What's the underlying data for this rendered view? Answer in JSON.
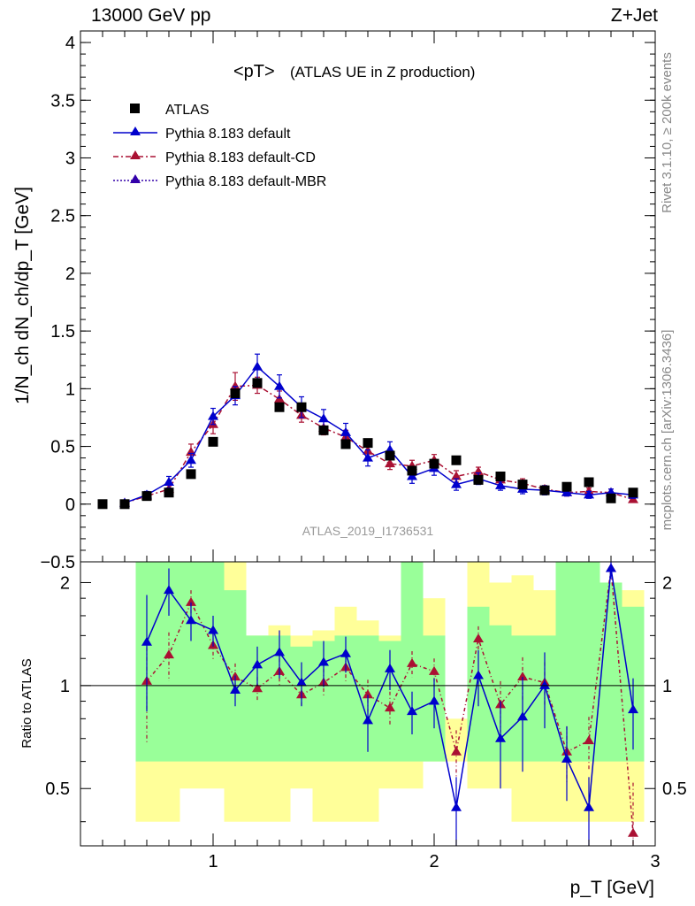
{
  "header": {
    "left": "13000 GeV pp",
    "right": "Z+Jet"
  },
  "side_labels": {
    "rivet": "Rivet 3.1.10, ≥ 200k events",
    "mcplots": "mcplots.cern.ch [arXiv:1306.3436]"
  },
  "chart_data": {
    "type": "scatter",
    "title": "<pT>",
    "subtitle": "(ATLAS UE in Z production)",
    "analysis_label": "ATLAS_2019_I1736531",
    "xlabel": "p_T [GeV]",
    "ylabel": "1/N_ch dN_ch/dp_T [GeV]",
    "ratio_ylabel": "Ratio to ATLAS",
    "xlim": [
      0.4,
      3.0
    ],
    "ylim": [
      -0.5,
      4.1
    ],
    "ratio_ylim": [
      0.34,
      2.3
    ],
    "x_ticks": [
      "1",
      "2",
      "3"
    ],
    "y_ticks": [
      "−0.5",
      "0",
      "0.5",
      "1",
      "1.5",
      "2",
      "2.5",
      "3",
      "3.5",
      "4"
    ],
    "ratio_ticks": [
      "0.5",
      "1",
      "2"
    ],
    "legend": [
      "ATLAS",
      "Pythia 8.183 default",
      "Pythia 8.183 default-CD",
      "Pythia 8.183 default-MBR"
    ],
    "colors": {
      "atlas": "#000000",
      "default": "#0000cc",
      "cd": "#aa1133",
      "mbr": "#3300aa",
      "band_green": "#99ff99",
      "band_yellow": "#ffff99"
    },
    "x": [
      0.5,
      0.6,
      0.7,
      0.8,
      0.9,
      1.0,
      1.1,
      1.2,
      1.3,
      1.4,
      1.5,
      1.6,
      1.7,
      1.8,
      1.9,
      2.0,
      2.1,
      2.2,
      2.3,
      2.4,
      2.5,
      2.6,
      2.7,
      2.8,
      2.9
    ],
    "series": [
      {
        "name": "ATLAS",
        "values": [
          0.0,
          0.0,
          0.07,
          0.1,
          0.26,
          0.54,
          0.96,
          1.05,
          0.84,
          0.84,
          0.64,
          0.52,
          0.53,
          0.42,
          0.29,
          0.35,
          0.38,
          0.21,
          0.24,
          0.17,
          0.12,
          0.15,
          0.19,
          0.05,
          0.1
        ]
      },
      {
        "name": "Pythia 8.183 default",
        "values": [
          null,
          0.01,
          0.08,
          0.19,
          0.38,
          0.76,
          0.94,
          1.19,
          1.02,
          0.84,
          0.74,
          0.62,
          0.4,
          0.47,
          0.24,
          0.31,
          0.17,
          0.22,
          0.16,
          0.13,
          0.12,
          0.1,
          0.08,
          0.1,
          0.08
        ],
        "errors": [
          null,
          0.01,
          0.03,
          0.05,
          0.06,
          0.07,
          0.08,
          0.11,
          0.1,
          0.09,
          0.08,
          0.08,
          0.07,
          0.07,
          0.06,
          0.06,
          0.05,
          0.05,
          0.04,
          0.04,
          0.04,
          0.03,
          0.03,
          0.03,
          0.03
        ]
      },
      {
        "name": "Pythia 8.183 default-CD",
        "values": [
          null,
          0.01,
          0.07,
          0.13,
          0.45,
          0.69,
          1.02,
          1.03,
          0.91,
          0.77,
          0.66,
          0.58,
          0.46,
          0.35,
          0.33,
          0.38,
          0.24,
          0.28,
          0.21,
          0.18,
          0.13,
          0.1,
          0.11,
          0.1,
          0.04
        ],
        "errors": [
          null,
          0.01,
          0.03,
          0.04,
          0.07,
          0.08,
          0.12,
          0.07,
          0.07,
          0.06,
          0.06,
          0.06,
          0.05,
          0.05,
          0.05,
          0.05,
          0.05,
          0.04,
          0.04,
          0.04,
          0.03,
          0.03,
          0.03,
          0.03,
          0.02
        ]
      },
      {
        "name": "Pythia 8.183 default-MBR",
        "values": []
      }
    ],
    "ratio": {
      "default": [
        null,
        null,
        1.34,
        1.9,
        1.55,
        1.45,
        0.97,
        1.15,
        1.25,
        1.02,
        1.17,
        1.24,
        0.79,
        1.12,
        0.84,
        0.9,
        0.44,
        1.07,
        0.7,
        0.81,
        1.0,
        0.61,
        0.44,
        2.2,
        0.85
      ],
      "default_err": [
        null,
        null,
        0.5,
        0.3,
        0.2,
        0.15,
        0.1,
        0.15,
        0.2,
        0.15,
        0.18,
        0.15,
        0.15,
        0.15,
        0.12,
        0.15,
        0.1,
        0.2,
        0.2,
        0.25,
        0.25,
        0.15,
        0.1,
        0.15,
        0.2
      ],
      "cd": [
        null,
        null,
        1.03,
        1.23,
        1.75,
        1.31,
        1.06,
        0.98,
        1.1,
        0.94,
        1.02,
        1.13,
        0.94,
        0.86,
        1.16,
        1.1,
        0.64,
        1.37,
        0.88,
        1.06,
        1.02,
        0.64,
        0.69,
        2.2,
        0.37
      ],
      "cd_err": [
        null,
        null,
        0.35,
        0.2,
        0.15,
        0.12,
        0.1,
        0.08,
        0.1,
        0.08,
        0.1,
        0.1,
        0.1,
        0.1,
        0.1,
        0.1,
        0.1,
        0.12,
        0.15,
        0.15,
        0.15,
        0.12,
        0.12,
        0.15,
        0.15
      ],
      "band_green": [
        [
          0.0,
          0.0
        ],
        [
          0.0,
          0.0
        ],
        [
          0.6,
          2.3
        ],
        [
          0.6,
          2.3
        ],
        [
          0.6,
          2.3
        ],
        [
          0.6,
          2.3
        ],
        [
          0.6,
          1.9
        ],
        [
          0.6,
          1.4
        ],
        [
          0.6,
          1.4
        ],
        [
          0.6,
          1.3
        ],
        [
          0.6,
          1.35
        ],
        [
          0.6,
          1.4
        ],
        [
          0.6,
          1.4
        ],
        [
          0.6,
          1.35
        ],
        [
          0.6,
          2.3
        ],
        [
          0.6,
          1.4
        ],
        [
          0.6,
          0.6
        ],
        [
          0.6,
          1.7
        ],
        [
          0.6,
          1.5
        ],
        [
          0.6,
          1.4
        ],
        [
          0.6,
          1.4
        ],
        [
          0.6,
          2.3
        ],
        [
          0.6,
          2.3
        ],
        [
          0.6,
          2.0
        ],
        [
          0.6,
          1.7
        ]
      ],
      "band_yellow": [
        [
          0.0,
          0.0
        ],
        [
          0.0,
          0.0
        ],
        [
          0.4,
          2.2
        ],
        [
          0.4,
          2.3
        ],
        [
          0.5,
          1.7
        ],
        [
          0.5,
          1.7
        ],
        [
          0.4,
          2.3
        ],
        [
          0.4,
          1.4
        ],
        [
          0.4,
          1.5
        ],
        [
          0.5,
          1.4
        ],
        [
          0.4,
          1.45
        ],
        [
          0.4,
          1.7
        ],
        [
          0.4,
          1.55
        ],
        [
          0.5,
          1.4
        ],
        [
          0.5,
          2.3
        ],
        [
          0.6,
          1.8
        ],
        [
          0.6,
          0.8
        ],
        [
          0.5,
          2.3
        ],
        [
          0.5,
          2.0
        ],
        [
          0.4,
          2.1
        ],
        [
          0.4,
          1.9
        ],
        [
          0.4,
          2.3
        ],
        [
          0.4,
          2.3
        ],
        [
          0.4,
          2.0
        ],
        [
          0.4,
          1.9
        ]
      ]
    }
  }
}
